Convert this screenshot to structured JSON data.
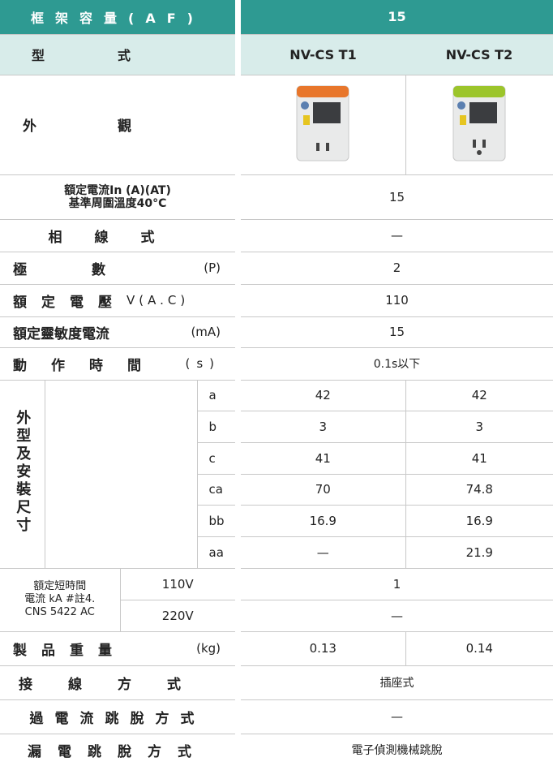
{
  "header": {
    "frame_capacity": "框架容量(AF)",
    "frame_value": 15
  },
  "models": {
    "label": "型式",
    "items": [
      "NV-CS T1",
      "NV-CS T2"
    ]
  },
  "appearance": {
    "label": "外觀"
  },
  "rated_current": {
    "label_lines": [
      "額定電流In (A)(AT)",
      "基準周圍溫度40°C"
    ],
    "value": 15
  },
  "phase_wire": {
    "label": "相線式",
    "value": "—"
  },
  "poles": {
    "label": "極數",
    "unit": "(P)",
    "value": 2
  },
  "rated_voltage": {
    "label": "額定電壓",
    "unit": "V(A.C)",
    "value": 110
  },
  "sensitivity": {
    "label": "額定靈敏度電流",
    "unit": "(mA)",
    "value": 15
  },
  "operating_time": {
    "label": "動作時間",
    "unit": "(s)",
    "value": "0.1s以下"
  },
  "dimensions": {
    "label": "外型及安裝尺寸",
    "rows": [
      {
        "name": "a",
        "values": [
          42,
          42
        ]
      },
      {
        "name": "b",
        "values": [
          3,
          3
        ]
      },
      {
        "name": "c",
        "values": [
          41,
          41
        ]
      },
      {
        "name": "ca",
        "values": [
          70,
          74.8
        ]
      },
      {
        "name": "bb",
        "values": [
          16.9,
          16.9
        ]
      },
      {
        "name": "aa",
        "values": [
          "—",
          21.9
        ]
      }
    ]
  },
  "short_time": {
    "label_lines": [
      "額定短時間",
      "電流 kA #註4.",
      "CNS 5422 AC"
    ],
    "rows": [
      {
        "voltage": "110V",
        "value": 1
      },
      {
        "voltage": "220V",
        "value": "—"
      }
    ]
  },
  "weight": {
    "label": "製品重量",
    "unit": "(kg)",
    "values": [
      0.13,
      0.14
    ]
  },
  "connection": {
    "label": "接線方式",
    "value": "插座式"
  },
  "overcurrent_trip": {
    "label": "過電流跳脫方式",
    "value": "—"
  },
  "leakage_trip": {
    "label": "漏電跳脫方式",
    "value": "電子偵測機械跳脫"
  }
}
